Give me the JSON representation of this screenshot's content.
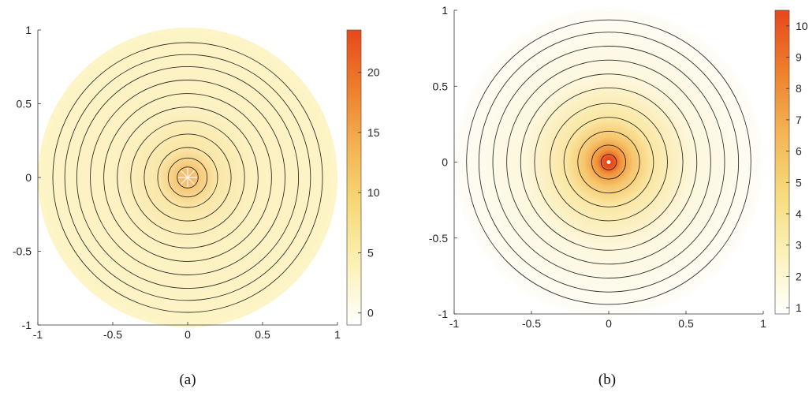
{
  "colormap": {
    "stops": [
      "#ffffff",
      "#fbf2b8",
      "#f7da7a",
      "#f3b454",
      "#ee7f2c",
      "#e7481b"
    ]
  },
  "chart_data": [
    {
      "type": "heatmap",
      "panel_label": "(a)",
      "domain": "unit disk",
      "xlim": [
        -1,
        1
      ],
      "ylim": [
        -1,
        1
      ],
      "xticks": [
        "-1",
        "-0.5",
        "0",
        "0.5",
        "1"
      ],
      "yticks": [
        "1",
        "0.5",
        "0",
        "-0.5",
        "-1"
      ],
      "colorbar": {
        "range": [
          -1,
          23.5
        ],
        "ticks": [
          "20",
          "15",
          "10",
          "5",
          "0"
        ]
      },
      "contour_radii": [
        0.07,
        0.13,
        0.2,
        0.29,
        0.38,
        0.47,
        0.56,
        0.65,
        0.74,
        0.82,
        0.9
      ],
      "contour_color": "#000000",
      "field_outside_center": 1,
      "center_peak": 23.5
    },
    {
      "type": "heatmap",
      "panel_label": "(b)",
      "domain": "unit disk",
      "xlim": [
        -1,
        1
      ],
      "ylim": [
        -1,
        1
      ],
      "xticks": [
        "-1",
        "-0.5",
        "0",
        "0.5",
        "1"
      ],
      "yticks": [
        "1",
        "0.5",
        "0",
        "-0.5",
        "-1"
      ],
      "colorbar": {
        "range": [
          0.8,
          10.5
        ],
        "ticks": [
          "10",
          "9",
          "8",
          "7",
          "6",
          "5",
          "4",
          "3",
          "2",
          "1"
        ]
      },
      "contour_radii": [
        0.05,
        0.11,
        0.2,
        0.29,
        0.38,
        0.48,
        0.57,
        0.66,
        0.75,
        0.84,
        0.92
      ],
      "contour_color": "#000000",
      "field_outside_center": 1,
      "center_peak": 10.5
    }
  ]
}
